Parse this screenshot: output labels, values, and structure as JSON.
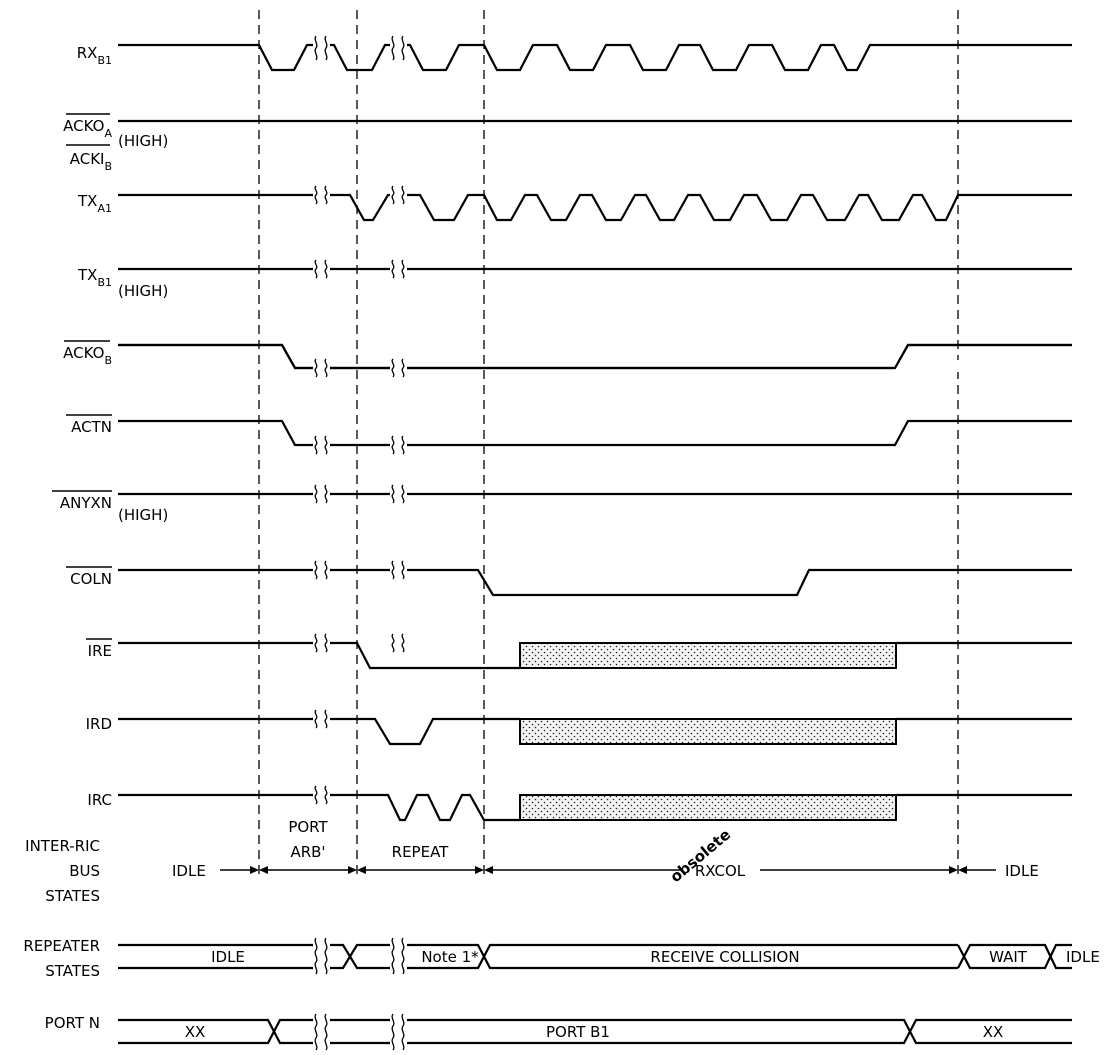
{
  "signals": [
    {
      "name": "RX",
      "sub": "B1",
      "over": false
    },
    {
      "name": "ACKO",
      "sub": "A",
      "over": true
    },
    {
      "name": "ACKI",
      "sub": "B",
      "over": true
    },
    {
      "name": "TX",
      "sub": "A1",
      "over": false
    },
    {
      "name": "TX",
      "sub": "B1",
      "over": false
    },
    {
      "name": "ACKO",
      "sub": "B",
      "over": true
    },
    {
      "name": "ACTN",
      "sub": "",
      "over": true
    },
    {
      "name": "ANYXN",
      "sub": "",
      "over": true
    },
    {
      "name": "COLN",
      "sub": "",
      "over": true
    },
    {
      "name": "IRE",
      "sub": "",
      "over": true
    },
    {
      "name": "IRD",
      "sub": "",
      "over": false
    },
    {
      "name": "IRC",
      "sub": "",
      "over": false
    }
  ],
  "high_note": "(HIGH)",
  "inter_ric": {
    "label": [
      "INTER-RIC",
      "BUS",
      "STATES"
    ],
    "states": [
      "IDLE",
      "PORT",
      "ARB'",
      "REPEAT",
      "RXCOL",
      "IDLE"
    ]
  },
  "repeater": {
    "label": [
      "REPEATER",
      "STATES"
    ],
    "states": [
      "IDLE",
      "Note 1*",
      "RECEIVE COLLISION",
      "WAIT",
      "IDLE"
    ]
  },
  "port_n": {
    "label": "PORT N",
    "states": [
      "XX",
      "PORT B1",
      "XX"
    ]
  },
  "watermark": "obsolete"
}
